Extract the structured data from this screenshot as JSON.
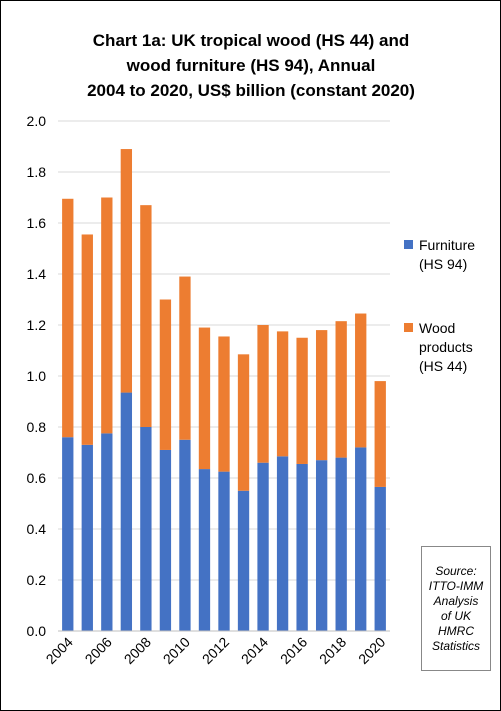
{
  "chart_data": {
    "type": "bar",
    "stacked": true,
    "title_lines": [
      "Chart 1a: UK tropical wood (HS 44) and",
      "wood furniture (HS 94), Annual",
      "2004 to 2020, US$ billion (constant 2020)"
    ],
    "categories": [
      "2004",
      "2005",
      "2006",
      "2007",
      "2008",
      "2009",
      "2010",
      "2011",
      "2012",
      "2013",
      "2014",
      "2015",
      "2016",
      "2017",
      "2018",
      "2019",
      "2020"
    ],
    "x_tick_labels": [
      "2004",
      "2006",
      "2008",
      "2010",
      "2012",
      "2014",
      "2016",
      "2018",
      "2020"
    ],
    "series": [
      {
        "name_lines": [
          "Furniture",
          "(HS 94)"
        ],
        "color": "#4472C4",
        "values": [
          0.76,
          0.73,
          0.775,
          0.935,
          0.8,
          0.71,
          0.75,
          0.635,
          0.625,
          0.55,
          0.66,
          0.685,
          0.655,
          0.67,
          0.68,
          0.72,
          0.565
        ]
      },
      {
        "name_lines": [
          "Wood",
          "products",
          "(HS 44)"
        ],
        "color": "#ED7D31",
        "values": [
          0.935,
          0.825,
          0.925,
          0.955,
          0.87,
          0.59,
          0.64,
          0.555,
          0.53,
          0.535,
          0.54,
          0.49,
          0.495,
          0.51,
          0.535,
          0.525,
          0.415
        ]
      }
    ],
    "ylim": [
      0,
      2.0
    ],
    "y_tick_labels": [
      "0.0",
      "0.2",
      "0.4",
      "0.6",
      "0.8",
      "1.0",
      "1.2",
      "1.4",
      "1.6",
      "1.8",
      "2.0"
    ],
    "grid": true,
    "legend_position": "right",
    "source_lines": [
      "Source:",
      "ITTO-IMM",
      "Analysis",
      "of UK",
      "HMRC",
      "Statistics"
    ]
  }
}
